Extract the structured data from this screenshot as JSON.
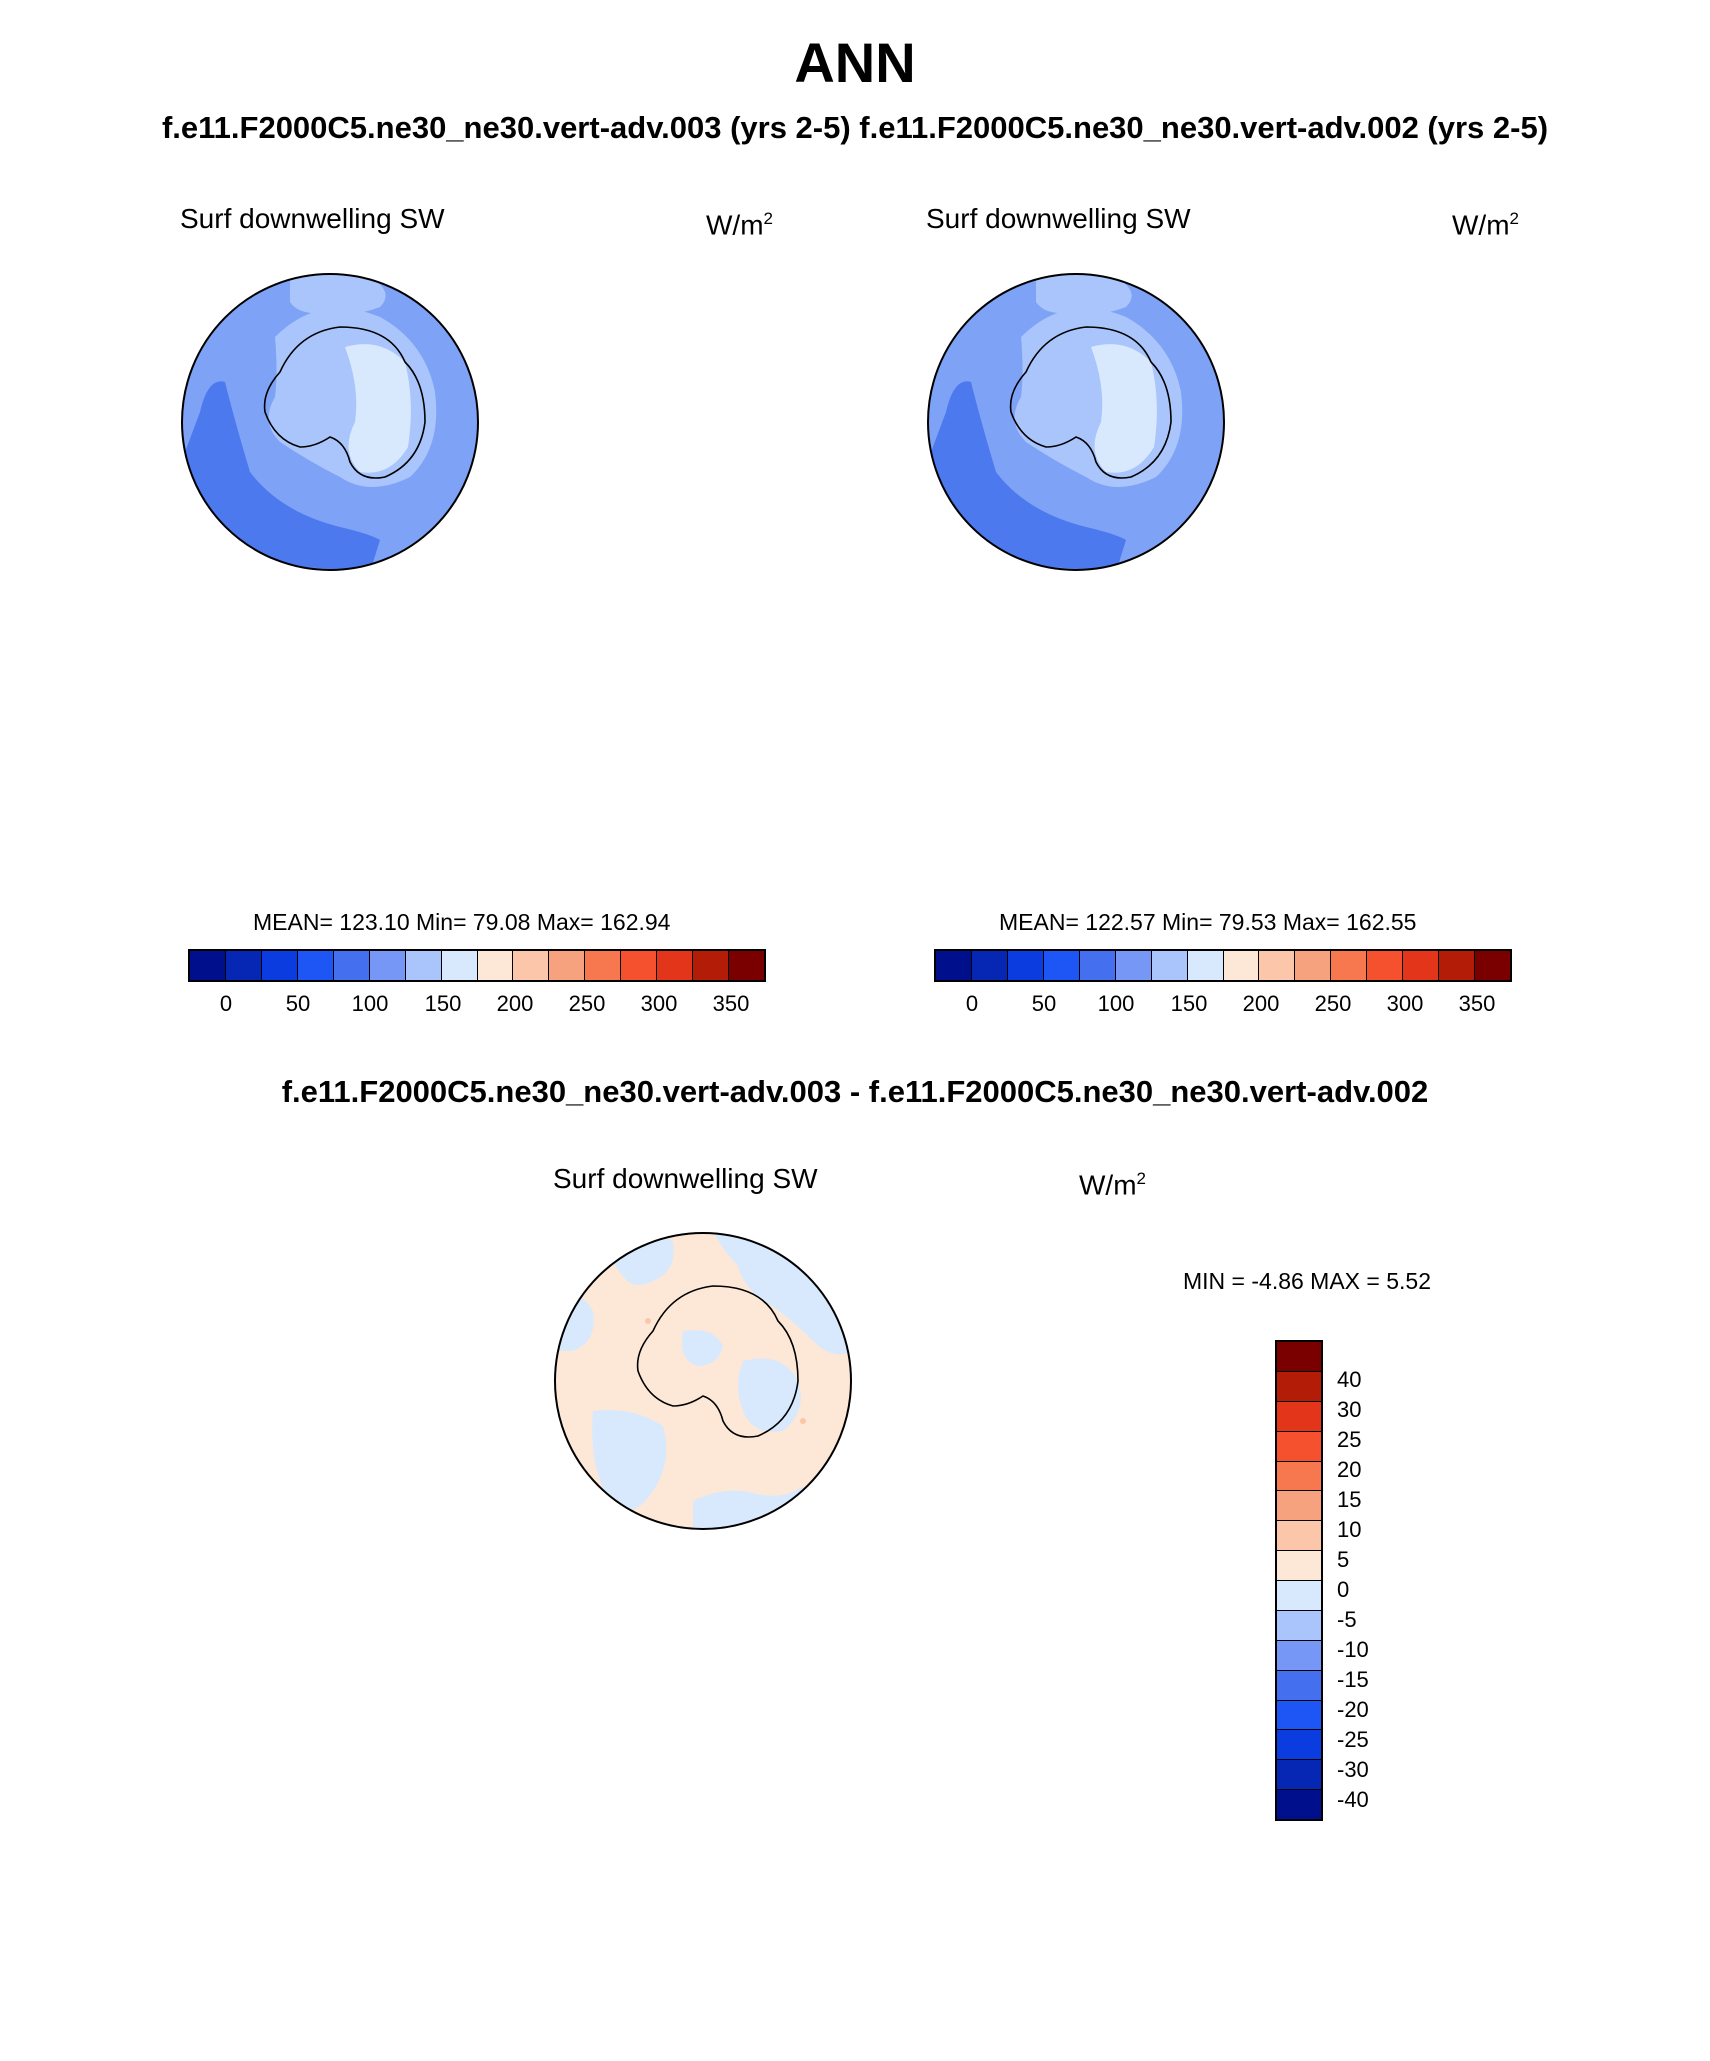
{
  "figure": {
    "title": "ANN",
    "cases_title": "f.e11.F2000C5.ne30_ne30.vert-adv.003 (yrs 2-5)  f.e11.F2000C5.ne30_ne30.vert-adv.002 (yrs 2-5)",
    "diff_title": "f.e11.F2000C5.ne30_ne30.vert-adv.003 - f.e11.F2000C5.ne30_ne30.vert-adv.002"
  },
  "panels": [
    {
      "label": "Surf downwelling SW",
      "units_base": "W/m",
      "units_exp": "2",
      "stats": "MEAN= 123.10  Min=  79.08  Max= 162.94"
    },
    {
      "label": "Surf downwelling SW",
      "units_base": "W/m",
      "units_exp": "2",
      "stats": "MEAN= 122.57  Min=  79.53  Max= 162.55"
    },
    {
      "label": "Surf downwelling SW",
      "units_base": "W/m",
      "units_exp": "2",
      "stats": "MIN =  -4.86 MAX =   5.52"
    }
  ],
  "colorbar_abs": {
    "colors": [
      "#000f8c",
      "#0626b4",
      "#0b3ce0",
      "#1e55f5",
      "#4470f0",
      "#7797f7",
      "#aac5fb",
      "#d8e9fd",
      "#fde8d7",
      "#fbc6a9",
      "#f7a27e",
      "#f7774e",
      "#f5512e",
      "#e3351a",
      "#b31d08",
      "#7a0000"
    ],
    "ticks": [
      "0",
      "50",
      "100",
      "150",
      "200",
      "250",
      "300",
      "350"
    ]
  },
  "colorbar_diff": {
    "colors": [
      "#7a0000",
      "#b31d08",
      "#e3351a",
      "#f5512e",
      "#f7774e",
      "#f7a27e",
      "#fbc6a9",
      "#fde8d7",
      "#d8e9fd",
      "#aac5fb",
      "#7797f7",
      "#4470f0",
      "#1e55f5",
      "#0b3ce0",
      "#0626b4",
      "#000f8c"
    ],
    "ticks": [
      "40",
      "30",
      "25",
      "20",
      "15",
      "10",
      "5",
      "0",
      "-5",
      "-10",
      "-15",
      "-20",
      "-25",
      "-30",
      "-40"
    ]
  },
  "map_colors": {
    "ocean_mid": "#7ea2f5",
    "ocean_dark": "#4d79ee",
    "ice_light": "#d8e9fd",
    "ice_mid": "#aac5fb",
    "diff_pos": "#fde8d7",
    "diff_neg": "#d8e9fd",
    "diff_dot": "#fbc6a9"
  }
}
